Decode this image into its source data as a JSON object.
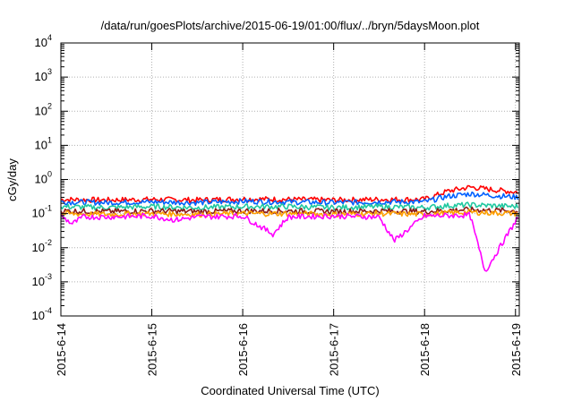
{
  "chart_data": {
    "type": "line",
    "title": "/data/run/goesPlots/archive/2015-06-19/01:00/flux/../bryn/5daysMoon.plot",
    "xlabel": "Coordinated Universal Time (UTC)",
    "ylabel": "cGy/day",
    "yscale": "log",
    "ylim": [
      0.0001,
      10000
    ],
    "xlim": [
      "2015-06-14 00:00",
      "2015-06-19 01:00"
    ],
    "grid": true,
    "x_tick_labels": [
      "2015-6-14",
      "2015-6-15",
      "2015-6-16",
      "2015-6-17",
      "2015-6-18",
      "2015-6-19"
    ],
    "y_ticks": [
      {
        "base": "10",
        "exp": "-4"
      },
      {
        "base": "10",
        "exp": "-3"
      },
      {
        "base": "10",
        "exp": "-2"
      },
      {
        "base": "10",
        "exp": "-1"
      },
      {
        "base": "10",
        "exp": "0"
      },
      {
        "base": "10",
        "exp": "1"
      },
      {
        "base": "10",
        "exp": "2"
      },
      {
        "base": "10",
        "exp": "3"
      },
      {
        "base": "10",
        "exp": "4"
      }
    ],
    "series": [
      {
        "color": "#ff0000",
        "x": [
          "2015-06-14 00:00",
          "2015-06-14 12:00",
          "2015-06-15 00:00",
          "2015-06-15 12:00",
          "2015-06-16 00:00",
          "2015-06-16 12:00",
          "2015-06-17 00:00",
          "2015-06-17 12:00",
          "2015-06-18 00:00",
          "2015-06-18 06:00",
          "2015-06-18 12:00",
          "2015-06-18 18:00",
          "2015-06-19 01:00"
        ],
        "values": [
          0.26,
          0.25,
          0.26,
          0.25,
          0.27,
          0.26,
          0.25,
          0.26,
          0.26,
          0.45,
          0.6,
          0.5,
          0.42
        ]
      },
      {
        "color": "#0060ff",
        "x": [
          "2015-06-14 00:00",
          "2015-06-14 12:00",
          "2015-06-15 00:00",
          "2015-06-15 12:00",
          "2015-06-16 00:00",
          "2015-06-16 12:00",
          "2015-06-17 00:00",
          "2015-06-17 12:00",
          "2015-06-18 00:00",
          "2015-06-18 06:00",
          "2015-06-18 12:00",
          "2015-06-18 18:00",
          "2015-06-19 01:00"
        ],
        "values": [
          0.22,
          0.21,
          0.22,
          0.21,
          0.23,
          0.22,
          0.21,
          0.22,
          0.22,
          0.32,
          0.38,
          0.34,
          0.3
        ]
      },
      {
        "color": "#20c8a0",
        "x": [
          "2015-06-14 00:00",
          "2015-06-14 12:00",
          "2015-06-15 00:00",
          "2015-06-15 12:00",
          "2015-06-16 00:00",
          "2015-06-16 12:00",
          "2015-06-17 00:00",
          "2015-06-17 12:00",
          "2015-06-18 00:00",
          "2015-06-18 06:00",
          "2015-06-18 12:00",
          "2015-06-18 18:00",
          "2015-06-19 01:00"
        ],
        "values": [
          0.16,
          0.15,
          0.16,
          0.15,
          0.16,
          0.16,
          0.15,
          0.16,
          0.15,
          0.17,
          0.18,
          0.17,
          0.16
        ]
      },
      {
        "color": "#8b1a1a",
        "x": [
          "2015-06-14 00:00",
          "2015-06-14 12:00",
          "2015-06-15 00:00",
          "2015-06-15 12:00",
          "2015-06-16 00:00",
          "2015-06-16 12:00",
          "2015-06-17 00:00",
          "2015-06-17 12:00",
          "2015-06-18 00:00",
          "2015-06-18 06:00",
          "2015-06-18 12:00",
          "2015-06-18 18:00",
          "2015-06-19 01:00"
        ],
        "values": [
          0.12,
          0.115,
          0.12,
          0.115,
          0.12,
          0.12,
          0.115,
          0.12,
          0.115,
          0.125,
          0.13,
          0.125,
          0.12
        ]
      },
      {
        "color": "#ffa000",
        "x": [
          "2015-06-14 00:00",
          "2015-06-14 12:00",
          "2015-06-15 00:00",
          "2015-06-15 12:00",
          "2015-06-16 00:00",
          "2015-06-16 12:00",
          "2015-06-17 00:00",
          "2015-06-17 12:00",
          "2015-06-18 00:00",
          "2015-06-18 06:00",
          "2015-06-18 12:00",
          "2015-06-18 18:00",
          "2015-06-19 01:00"
        ],
        "values": [
          0.1,
          0.095,
          0.1,
          0.095,
          0.1,
          0.1,
          0.095,
          0.1,
          0.095,
          0.105,
          0.11,
          0.105,
          0.1
        ]
      },
      {
        "color": "#ff00ff",
        "x": [
          "2015-06-14 00:00",
          "2015-06-14 03:00",
          "2015-06-14 06:00",
          "2015-06-14 12:00",
          "2015-06-15 00:00",
          "2015-06-15 06:00",
          "2015-06-15 12:00",
          "2015-06-16 00:00",
          "2015-06-16 08:00",
          "2015-06-16 12:00",
          "2015-06-17 00:00",
          "2015-06-17 12:00",
          "2015-06-17 16:00",
          "2015-06-18 00:00",
          "2015-06-18 12:00",
          "2015-06-18 16:00",
          "2015-06-19 01:00"
        ],
        "values": [
          0.085,
          0.05,
          0.08,
          0.08,
          0.085,
          0.065,
          0.08,
          0.085,
          0.025,
          0.08,
          0.085,
          0.08,
          0.016,
          0.085,
          0.09,
          0.002,
          0.09
        ]
      }
    ]
  }
}
